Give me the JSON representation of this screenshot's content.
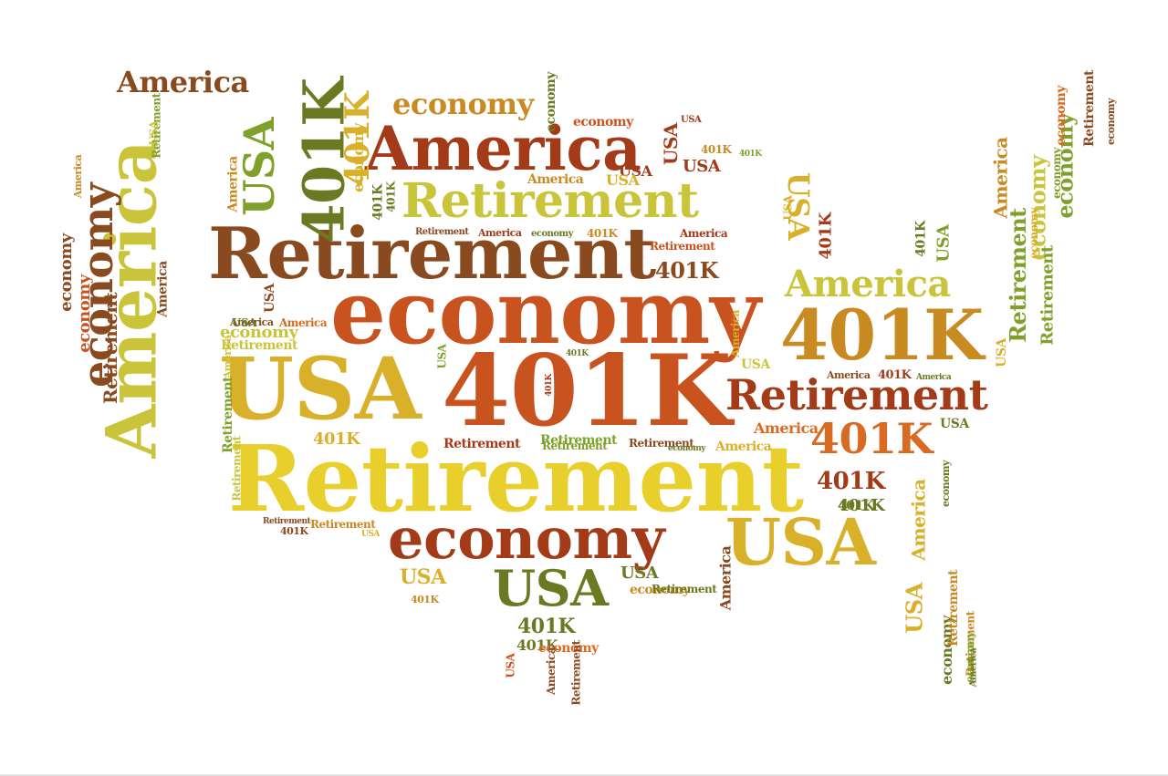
{
  "palette": {
    "yellow": "#e8cf2c",
    "gold": "#d9b02a",
    "lime": "#c9c43a",
    "orange": "#d96a22",
    "rust": "#c9531f",
    "brown": "#8a4a1f",
    "redbrown": "#a33a18",
    "olive": "#6b7a22",
    "green": "#7fa02a",
    "amber": "#c98a22"
  },
  "words": [
    {
      "text": "Retirement",
      "color": "yellow"
    },
    {
      "text": "economy",
      "color": "rust"
    },
    {
      "text": "401K",
      "color": "rust"
    },
    {
      "text": "USA",
      "color": "gold"
    },
    {
      "text": "Retirement",
      "color": "brown"
    },
    {
      "text": "America",
      "color": "redbrown"
    },
    {
      "text": "Retirement",
      "color": "lime"
    },
    {
      "text": "economy",
      "color": "redbrown"
    },
    {
      "text": "USA",
      "color": "gold"
    },
    {
      "text": "401K",
      "color": "amber"
    },
    {
      "text": "Retirement",
      "color": "redbrown"
    },
    {
      "text": "America",
      "color": "lime"
    },
    {
      "text": "401K",
      "color": "orange"
    },
    {
      "text": "USA",
      "color": "olive"
    },
    {
      "text": "America",
      "color": "brown"
    },
    {
      "text": "economy",
      "color": "amber"
    },
    {
      "text": "America",
      "color": "lime"
    },
    {
      "text": "economy",
      "color": "brown"
    },
    {
      "text": "401K",
      "color": "olive"
    },
    {
      "text": "USA",
      "color": "green"
    },
    {
      "text": "401K",
      "color": "gold"
    },
    {
      "text": "401K",
      "color": "redbrown"
    },
    {
      "text": "401K",
      "color": "brown"
    },
    {
      "text": "USA",
      "color": "gold"
    },
    {
      "text": "401K",
      "color": "olive"
    },
    {
      "text": "USA",
      "color": "redbrown"
    },
    {
      "text": "USA",
      "color": "gold"
    },
    {
      "text": "America",
      "color": "orange"
    },
    {
      "text": "Retirement",
      "color": "green"
    },
    {
      "text": "economy",
      "color": "lime"
    },
    {
      "text": "economy",
      "color": "green"
    },
    {
      "text": "economy",
      "color": "orange"
    },
    {
      "text": "USA",
      "color": "gold"
    },
    {
      "text": "America",
      "color": "gold"
    },
    {
      "text": "Retirement",
      "color": "amber"
    },
    {
      "text": "economy",
      "color": "amber"
    },
    {
      "text": "America",
      "color": "brown"
    },
    {
      "text": "economy",
      "color": "olive"
    },
    {
      "text": "Retirement",
      "color": "brown"
    },
    {
      "text": "economy",
      "color": "brown"
    },
    {
      "text": "America",
      "color": "redbrown"
    },
    {
      "text": "Retirement",
      "color": "green"
    },
    {
      "text": "economy",
      "color": "lime"
    },
    {
      "text": "401K",
      "color": "olive"
    },
    {
      "text": "America",
      "color": "gold"
    },
    {
      "text": "USA",
      "color": "redbrown"
    },
    {
      "text": "401K",
      "color": "olive"
    },
    {
      "text": "401K",
      "color": "redbrown"
    },
    {
      "text": "401K",
      "color": "olive"
    },
    {
      "text": "USA",
      "color": "green"
    },
    {
      "text": "401K",
      "color": "gold"
    },
    {
      "text": "economy",
      "color": "rust"
    },
    {
      "text": "America",
      "color": "orange"
    },
    {
      "text": "USA",
      "color": "redbrown"
    },
    {
      "text": "economy",
      "color": "green"
    },
    {
      "text": "America",
      "color": "amber"
    },
    {
      "text": "Retirement",
      "color": "brown"
    },
    {
      "text": "Retirement",
      "color": "amber"
    },
    {
      "text": "economy",
      "color": "gold"
    },
    {
      "text": "Retirement",
      "color": "green"
    },
    {
      "text": "Retirement",
      "color": "redbrown"
    },
    {
      "text": "USA",
      "color": "olive"
    },
    {
      "text": "401K",
      "color": "olive"
    },
    {
      "text": "401K",
      "color": "amber"
    },
    {
      "text": "Retirement",
      "color": "rust"
    },
    {
      "text": "Retirement",
      "color": "green"
    },
    {
      "text": "Retirement",
      "color": "brown"
    },
    {
      "text": "America",
      "color": "amber"
    },
    {
      "text": "America",
      "color": "redbrown"
    },
    {
      "text": "401K",
      "color": "redbrown"
    },
    {
      "text": "401K",
      "color": "amber"
    },
    {
      "text": "America",
      "color": "brown"
    },
    {
      "text": "America",
      "color": "olive"
    },
    {
      "text": "USA",
      "color": "brown"
    },
    {
      "text": "USA",
      "color": "lime"
    },
    {
      "text": "USA",
      "color": "gold"
    },
    {
      "text": "economy",
      "color": "olive"
    },
    {
      "text": "America",
      "color": "gold"
    },
    {
      "text": "America",
      "color": "brown"
    },
    {
      "text": "USA",
      "color": "gold"
    },
    {
      "text": "USA",
      "color": "olive"
    },
    {
      "text": "USA",
      "color": "olive"
    },
    {
      "text": "401K",
      "color": "olive"
    },
    {
      "text": "economy",
      "color": "brown"
    },
    {
      "text": "Retirement",
      "color": "green"
    },
    {
      "text": "economy",
      "color": "rust"
    },
    {
      "text": "economy",
      "color": "olive"
    },
    {
      "text": "401K",
      "color": "olive"
    },
    {
      "text": "USA",
      "color": "green"
    },
    {
      "text": "Retirement",
      "color": "lime"
    },
    {
      "text": "America",
      "color": "amber"
    },
    {
      "text": "economy",
      "color": "olive"
    },
    {
      "text": "401K",
      "color": "green"
    },
    {
      "text": "Retirement",
      "color": "lime"
    },
    {
      "text": "Retirement",
      "color": "brown"
    },
    {
      "text": "economy",
      "color": "olive"
    },
    {
      "text": "Retirement",
      "color": "amber"
    },
    {
      "text": "economy",
      "color": "gold"
    },
    {
      "text": "USA",
      "color": "redbrown"
    },
    {
      "text": "401K",
      "color": "brown"
    },
    {
      "text": "Retirement",
      "color": "brown"
    },
    {
      "text": "USA",
      "color": "gold"
    },
    {
      "text": "America",
      "color": "brown"
    },
    {
      "text": "America",
      "color": "amber"
    },
    {
      "text": "USA",
      "color": "gold"
    },
    {
      "text": "Retirement",
      "color": "green"
    },
    {
      "text": "America",
      "color": "lime"
    },
    {
      "text": "USA",
      "color": "lime"
    },
    {
      "text": "401K",
      "color": "redbrown"
    },
    {
      "text": "401K",
      "color": "olive"
    },
    {
      "text": "401K",
      "color": "amber"
    },
    {
      "text": "economy",
      "color": "orange"
    },
    {
      "text": "Retirement",
      "color": "olive"
    },
    {
      "text": "USA",
      "color": "rust"
    },
    {
      "text": "America",
      "color": "brown"
    },
    {
      "text": "Retirement",
      "color": "brown"
    },
    {
      "text": "economy",
      "color": "green"
    },
    {
      "text": "America",
      "color": "olive"
    }
  ]
}
